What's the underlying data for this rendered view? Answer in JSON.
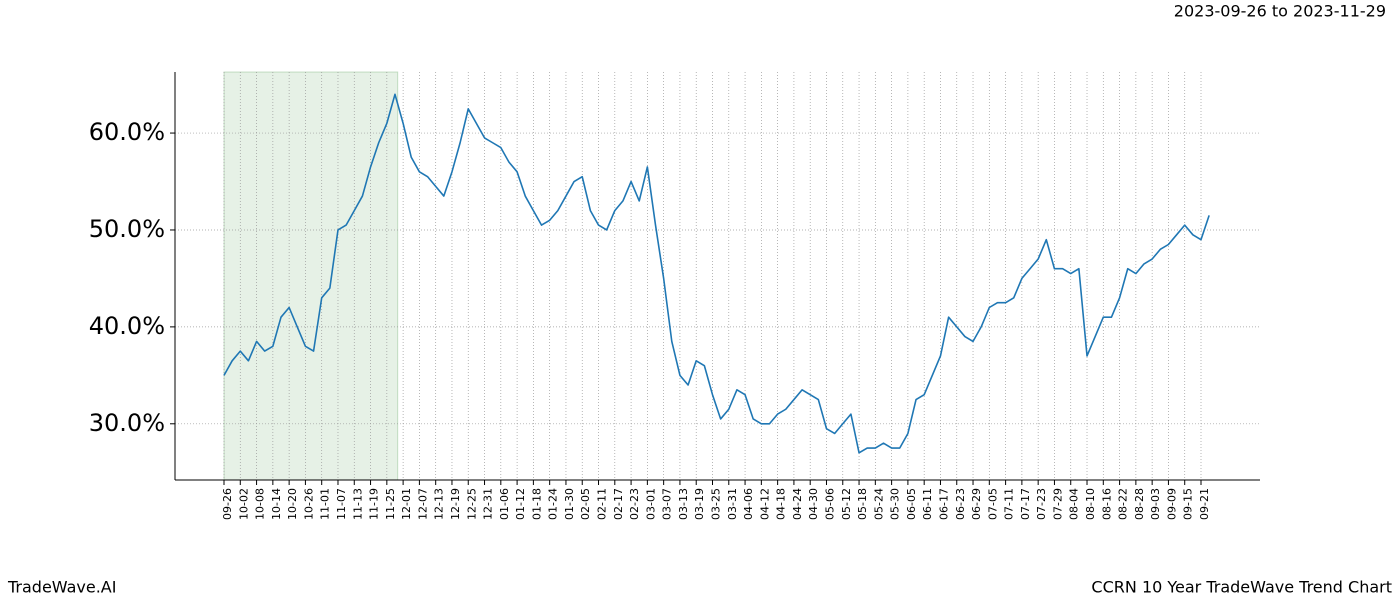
{
  "chart_data": {
    "type": "line",
    "title": "CCRN 10 Year TradeWave Trend Chart",
    "subtitle": "2023-09-26 to 2023-11-29",
    "brand": "TradeWave.AI",
    "categories": [
      "09-26",
      null,
      "10-02",
      null,
      "10-08",
      null,
      "10-14",
      null,
      "10-20",
      null,
      "10-26",
      null,
      "11-01",
      null,
      "11-07",
      null,
      "11-13",
      null,
      "11-19",
      null,
      "11-25",
      null,
      "12-01",
      null,
      "12-07",
      null,
      "12-13",
      null,
      "12-19",
      null,
      "12-25",
      null,
      "12-31",
      null,
      "01-06",
      null,
      "01-12",
      null,
      "01-18",
      null,
      "01-24",
      null,
      "01-30",
      null,
      "02-05",
      null,
      "02-11",
      null,
      "02-17",
      null,
      "02-23",
      null,
      "03-01",
      null,
      "03-07",
      null,
      "03-13",
      null,
      "03-19",
      null,
      "03-25",
      null,
      "03-31",
      null,
      "04-06",
      null,
      "04-12",
      null,
      "04-18",
      null,
      "04-24",
      null,
      "04-30",
      null,
      "05-06",
      null,
      "05-12",
      null,
      "05-18",
      null,
      "05-24",
      null,
      "05-30",
      null,
      "06-05",
      null,
      "06-11",
      null,
      "06-17",
      null,
      "06-23",
      null,
      "06-29",
      null,
      "07-05",
      null,
      "07-11",
      null,
      "07-17",
      null,
      "07-23",
      null,
      "07-29",
      null,
      "08-04",
      null,
      "08-10",
      null,
      "08-16",
      null,
      "08-22",
      null,
      "08-28",
      null,
      "09-03",
      null,
      "09-09",
      null,
      "09-15",
      null,
      "09-21",
      null
    ],
    "series": [
      {
        "name": "CCRN",
        "color": "#1f77b4",
        "values": [
          35,
          36.5,
          37.5,
          36.5,
          38.5,
          37.5,
          38,
          41,
          42,
          40,
          38,
          37.5,
          43,
          44,
          50,
          50.5,
          52,
          53.5,
          56.5,
          59,
          61,
          64,
          61,
          57.5,
          56,
          55.5,
          54.5,
          53.5,
          56,
          59,
          62.5,
          61,
          59.5,
          59,
          58.5,
          57,
          56,
          53.5,
          52,
          50.5,
          51,
          52,
          53.5,
          55,
          55.5,
          52,
          50.5,
          50,
          52,
          53,
          55,
          53,
          56.5,
          50.5,
          45,
          38.5,
          35,
          34,
          36.5,
          36,
          33,
          30.5,
          31.5,
          33.5,
          33,
          30.5,
          30,
          30,
          31,
          31.5,
          32.5,
          33.5,
          33,
          32.5,
          29.5,
          29,
          30,
          31,
          27,
          27.5,
          27.5,
          28,
          27.5,
          27.5,
          29,
          32.5,
          33,
          35,
          37,
          41,
          40,
          39,
          38.5,
          40,
          42,
          42.5,
          42.5,
          43,
          45,
          46,
          47,
          49,
          46,
          46,
          45.5,
          46,
          37,
          39,
          41,
          41,
          43,
          46,
          45.5,
          46.5,
          47,
          48,
          48.5,
          49.5,
          50.5,
          49.5,
          49,
          51.5
        ]
      }
    ],
    "ylim": [
      24.2,
      66.3
    ],
    "yticks": [
      {
        "value": 30,
        "label": "30.0%"
      },
      {
        "value": 40,
        "label": "40.0%"
      },
      {
        "value": 50,
        "label": "50.0%"
      },
      {
        "value": 60,
        "label": "60.0%"
      }
    ],
    "grid": true
  }
}
